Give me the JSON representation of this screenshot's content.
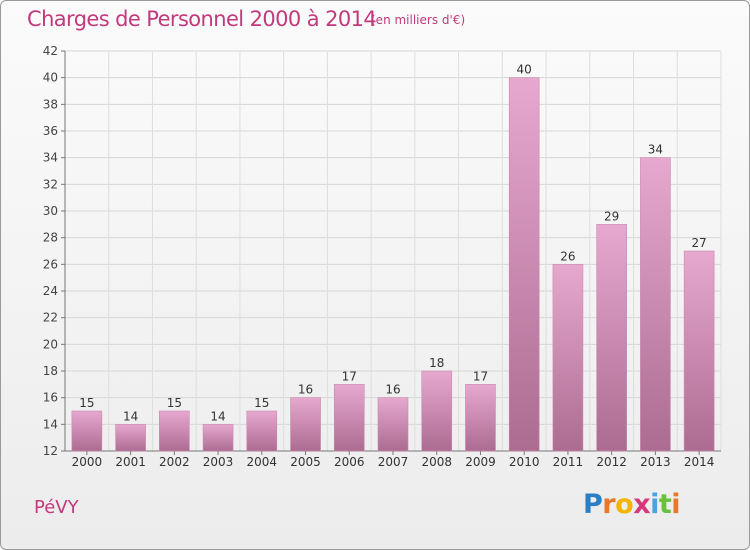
{
  "title": "Charges de Personnel 2000 à 2014",
  "subtitle": "(en milliers d'€)",
  "commune": "PéVY",
  "logo": {
    "letters": [
      "P",
      "r",
      "o",
      "x",
      "i",
      "t",
      "i"
    ],
    "colors": [
      "#2a7fc4",
      "#e8782a",
      "#f4b400",
      "#d8387a",
      "#4aa3df",
      "#6abf3c",
      "#e8782a"
    ]
  },
  "colors": {
    "bar_light": "#e7a8cf",
    "bar_dark": "#ac6c92",
    "text_accent": "#c2397c"
  },
  "chart_data": {
    "type": "bar",
    "categories": [
      "2000",
      "2001",
      "2002",
      "2003",
      "2004",
      "2005",
      "2006",
      "2007",
      "2008",
      "2009",
      "2010",
      "2011",
      "2012",
      "2013",
      "2014"
    ],
    "values": [
      15,
      14,
      15,
      14,
      15,
      16,
      17,
      16,
      18,
      17,
      40,
      26,
      29,
      34,
      27
    ],
    "yticks": [
      12,
      14,
      16,
      18,
      20,
      22,
      24,
      26,
      28,
      30,
      32,
      34,
      36,
      38,
      40,
      42
    ],
    "ylim": [
      12,
      42
    ],
    "grid": true,
    "xlabel": "",
    "ylabel": ""
  }
}
